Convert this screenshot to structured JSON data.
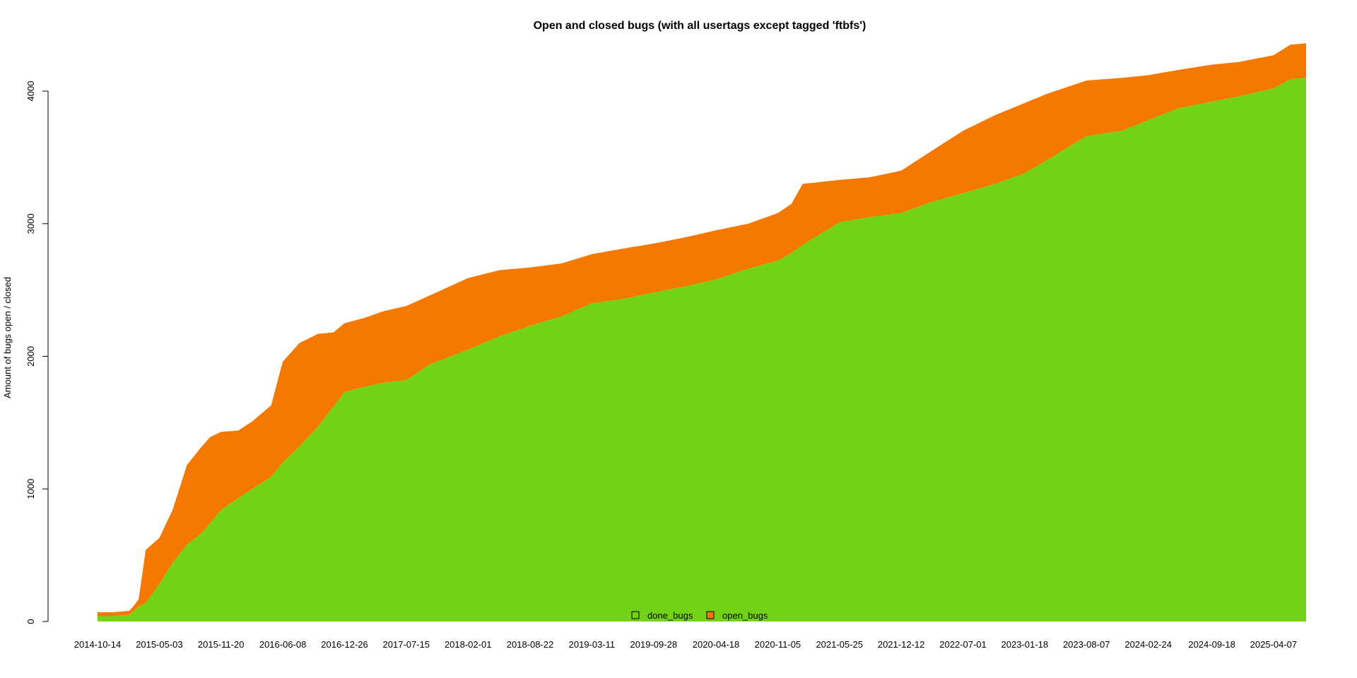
{
  "chart_data": {
    "type": "area",
    "stacked": true,
    "title": "Open and closed bugs (with all usertags except tagged 'ftbfs')",
    "xlabel": "",
    "ylabel": "Amount of bugs open / closed",
    "ylim": [
      0,
      4350
    ],
    "yticks": [
      0,
      1000,
      2000,
      3000,
      4000
    ],
    "xlim": [
      "2014-10-14",
      "2025-07-22"
    ],
    "xticks": [
      "2014-10-14",
      "2015-05-03",
      "2015-11-20",
      "2016-06-08",
      "2016-12-26",
      "2017-07-15",
      "2018-02-01",
      "2018-08-22",
      "2019-03-11",
      "2019-09-28",
      "2020-04-18",
      "2020-11-05",
      "2021-05-25",
      "2021-12-12",
      "2022-07-01",
      "2023-01-18",
      "2023-08-07",
      "2024-02-24",
      "2024-09-18",
      "2025-04-07"
    ],
    "grid": false,
    "legend": {
      "position": "bottom-center",
      "entries": [
        "done_bugs",
        "open_bugs"
      ]
    },
    "colors": {
      "done_bugs": "#73d216",
      "open_bugs": "#f57900"
    },
    "x": [
      "2014-10-14",
      "2014-12-01",
      "2015-01-25",
      "2015-02-10",
      "2015-02-25",
      "2015-03-20",
      "2015-05-03",
      "2015-06-15",
      "2015-08-01",
      "2015-09-15",
      "2015-10-15",
      "2015-11-20",
      "2016-01-15",
      "2016-03-01",
      "2016-05-01",
      "2016-06-08",
      "2016-08-01",
      "2016-10-01",
      "2016-11-20",
      "2016-12-26",
      "2017-03-01",
      "2017-05-01",
      "2017-07-15",
      "2017-10-01",
      "2018-02-01",
      "2018-05-15",
      "2018-08-22",
      "2018-12-01",
      "2019-03-11",
      "2019-06-15",
      "2019-09-28",
      "2020-01-15",
      "2020-04-18",
      "2020-08-01",
      "2020-11-05",
      "2020-12-20",
      "2021-01-25",
      "2021-05-25",
      "2021-09-01",
      "2021-12-12",
      "2022-03-15",
      "2022-07-01",
      "2022-10-15",
      "2023-01-18",
      "2023-04-01",
      "2023-08-07",
      "2023-12-01",
      "2024-02-24",
      "2024-06-01",
      "2024-09-18",
      "2024-12-15",
      "2025-04-07",
      "2025-06-01",
      "2025-07-22"
    ],
    "series": [
      {
        "name": "done_bugs",
        "values": [
          40,
          40,
          50,
          80,
          110,
          140,
          280,
          440,
          580,
          660,
          740,
          840,
          930,
          1000,
          1090,
          1200,
          1320,
          1470,
          1620,
          1730,
          1770,
          1800,
          1820,
          1940,
          2050,
          2150,
          2230,
          2300,
          2400,
          2430,
          2480,
          2530,
          2580,
          2660,
          2720,
          2780,
          2840,
          3010,
          3050,
          3080,
          3160,
          3230,
          3300,
          3380,
          3480,
          3660,
          3700,
          3780,
          3870,
          3920,
          3960,
          4020,
          4090,
          4100
        ]
      },
      {
        "name": "open_bugs",
        "values": [
          30,
          30,
          30,
          40,
          60,
          400,
          350,
          400,
          600,
          650,
          650,
          590,
          510,
          510,
          540,
          760,
          780,
          700,
          560,
          520,
          520,
          540,
          560,
          520,
          540,
          500,
          440,
          400,
          370,
          380,
          370,
          370,
          370,
          340,
          360,
          370,
          460,
          320,
          300,
          320,
          380,
          470,
          520,
          530,
          500,
          420,
          400,
          340,
          290,
          280,
          260,
          250,
          260,
          260
        ]
      }
    ]
  }
}
